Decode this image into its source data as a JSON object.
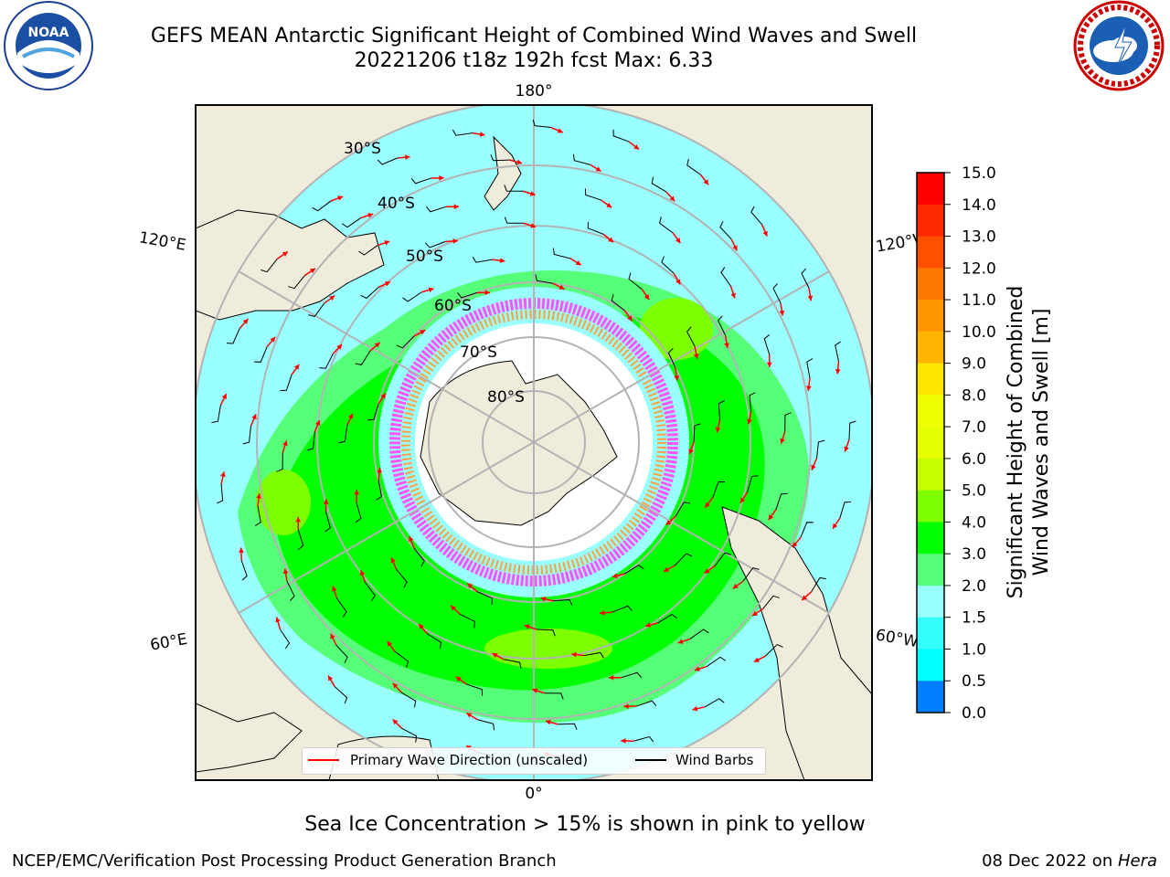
{
  "header": {
    "title_line1": "GEFS MEAN Antarctic Significant Height of Combined Wind Waves and Swell",
    "title_line2": "20221206 t18z 192h fcst   Max: 6.33"
  },
  "logos": {
    "left": {
      "icon": "noaa-logo-icon",
      "text": "NOAA",
      "ring_text": "NATIONAL OCEANIC AND ATMOSPHERIC ADMINISTRATION · U.S. DEPARTMENT OF COMMERCE"
    },
    "right": {
      "icon": "national-weather-service-logo-icon",
      "ring_text": "NATIONAL WEATHER SERVICE"
    }
  },
  "map": {
    "projection": "south polar stereographic",
    "longitude_labels": {
      "top": "180°",
      "bottom": "0°",
      "left_upper": "120°E",
      "left_lower": "60°E",
      "right_upper": "120°W",
      "right_lower": "60°W"
    },
    "latitude_labels": [
      "30°S",
      "40°S",
      "50°S",
      "60°S",
      "70°S",
      "80°S"
    ],
    "max_value": 6.33,
    "land_color": "#efecdc",
    "ice_colors": [
      "#ff55ff",
      "#ffa040",
      "#ffffff"
    ]
  },
  "legend": {
    "wave_label": "Primary Wave Direction (unscaled)",
    "barb_label": "Wind Barbs",
    "wave_color": "#ff0000",
    "barb_color": "#000000"
  },
  "colorbar": {
    "label_line1": "Significant Height of Combined",
    "label_line2": "Wind Waves and Swell [m]",
    "ticks": [
      "15.0",
      "14.0",
      "13.0",
      "12.0",
      "11.0",
      "10.0",
      "9.0",
      "8.0",
      "7.0",
      "6.0",
      "5.0",
      "4.0",
      "3.0",
      "2.0",
      "1.5",
      "1.0",
      "0.5",
      "0.0"
    ],
    "colors_top_to_bottom": [
      "#ff0000",
      "#ff2800",
      "#ff5000",
      "#ff7800",
      "#ff9600",
      "#ffb400",
      "#ffe600",
      "#f0ff00",
      "#e6ff00",
      "#c8ff00",
      "#7dff00",
      "#00ff00",
      "#55ff77",
      "#99ffff",
      "#33ffff",
      "#00ffff",
      "#0080ff",
      "#0000ff"
    ]
  },
  "notes": {
    "ice": "Sea Ice Concentration > 15% is shown in pink to yellow"
  },
  "footer": {
    "left": "NCEP/EMC/Verification Post Processing Product Generation Branch",
    "right_prefix": "08 Dec 2022 on ",
    "right_host": "Hera"
  }
}
